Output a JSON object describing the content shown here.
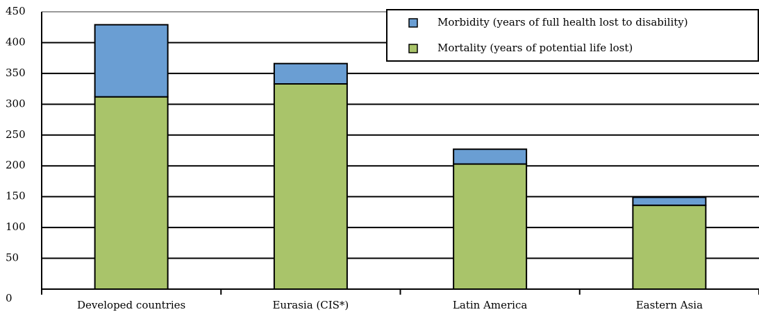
{
  "chart_data": {
    "type": "stacked_bar",
    "categories": [
      "Developed countries",
      "Eurasia (CIS*)",
      "Latin America",
      "Eastern Asia"
    ],
    "series": [
      {
        "name": "Mortality (years of potential life lost)",
        "color": "#a9c46a",
        "values": [
          312,
          333,
          203,
          136
        ]
      },
      {
        "name": "Morbidity (years of full health lost to disability)",
        "color": "#6a9ed3",
        "values": [
          117,
          33,
          24,
          13
        ]
      }
    ],
    "ylim": [
      0,
      450
    ],
    "yticks": [
      0,
      50,
      100,
      150,
      200,
      250,
      300,
      350,
      400,
      450
    ],
    "grid": true
  }
}
